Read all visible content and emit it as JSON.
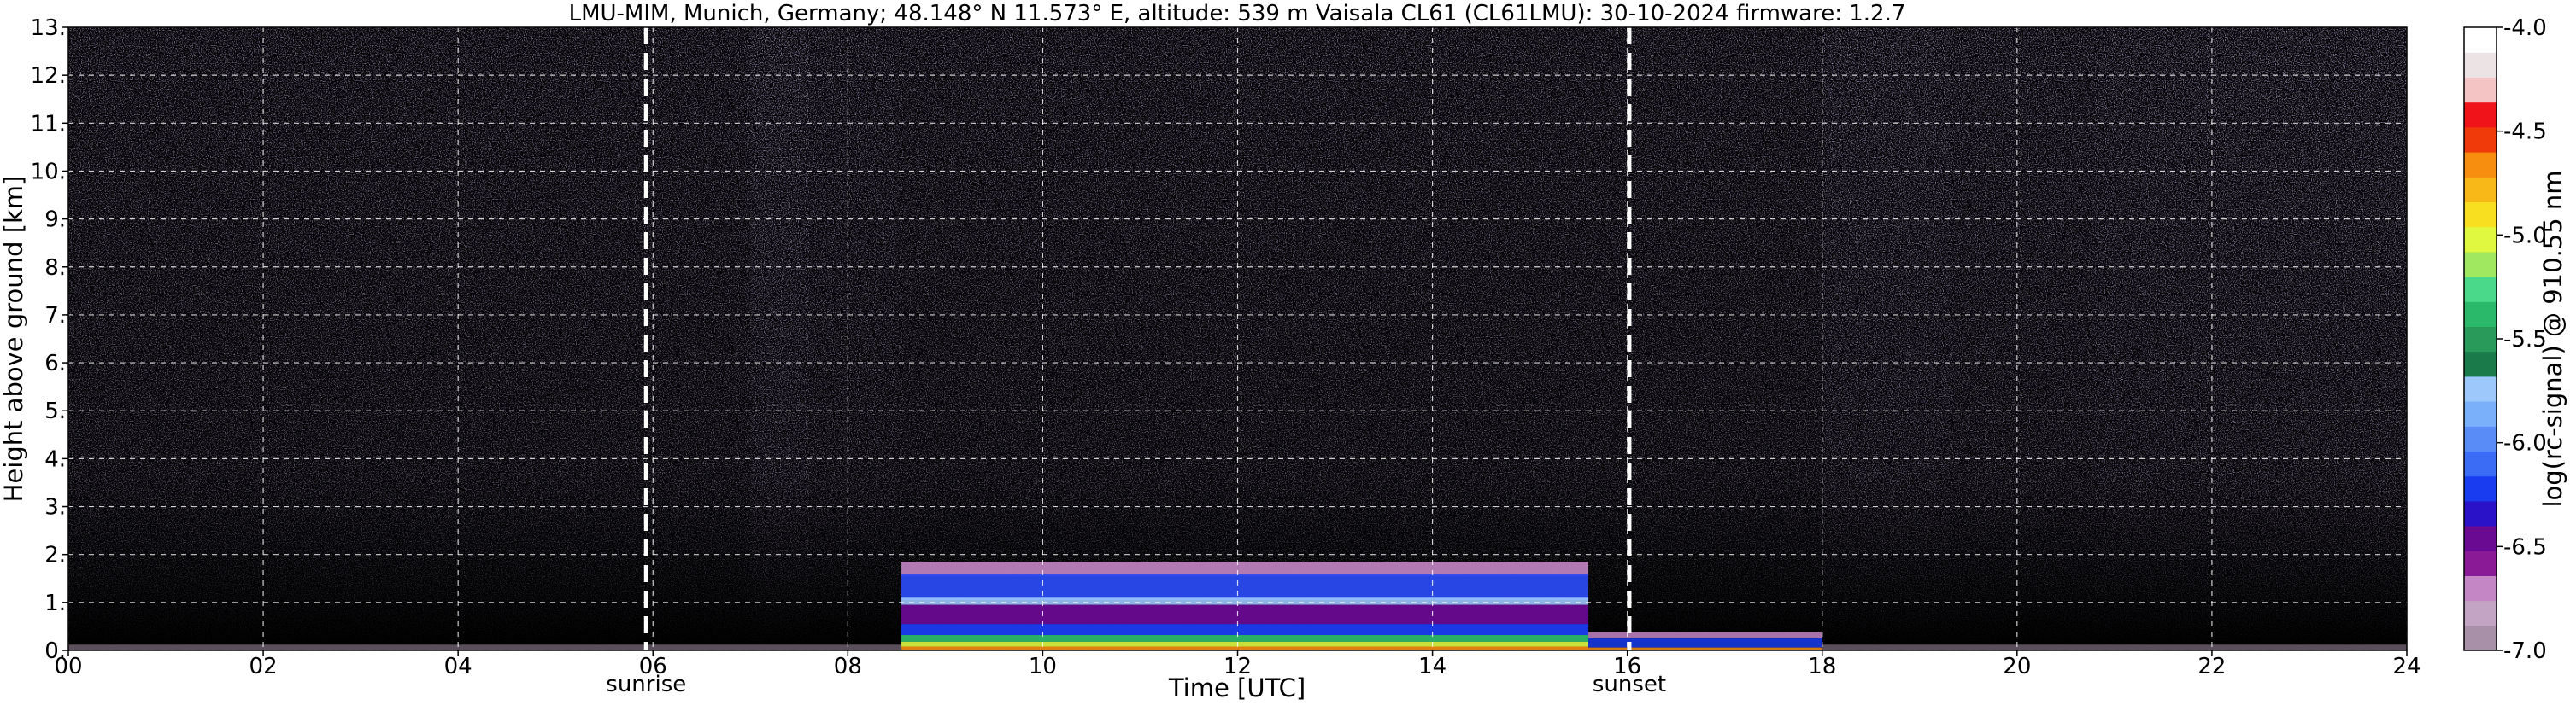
{
  "chart_data": {
    "type": "heatmap",
    "title": "LMU-MIM, Munich, Germany; 48.148° N 11.573° E, altitude: 539 m    Vaisala CL61 (CL61LMU): 30-10-2024    firmware: 1.2.7",
    "xlabel": "Time [UTC]",
    "ylabel": "Height above ground [km]",
    "xlim": [
      0,
      24
    ],
    "ylim": [
      0,
      13
    ],
    "x_ticks": [
      "00",
      "02",
      "04",
      "06",
      "08",
      "10",
      "12",
      "14",
      "16",
      "18",
      "20",
      "22",
      "24"
    ],
    "x_tick_values": [
      0,
      2,
      4,
      6,
      8,
      10,
      12,
      14,
      16,
      18,
      20,
      22,
      24
    ],
    "y_ticks": [
      "0.",
      "1.",
      "2.",
      "3.",
      "4.",
      "5.",
      "6.",
      "7.",
      "8.",
      "9.",
      "10.",
      "11.",
      "12.",
      "13."
    ],
    "y_tick_values": [
      0,
      1,
      2,
      3,
      4,
      5,
      6,
      7,
      8,
      9,
      10,
      11,
      12,
      13
    ],
    "grid": true,
    "markers": [
      {
        "label": "sunrise",
        "x": 5.93
      },
      {
        "label": "sunset",
        "x": 16.02
      }
    ],
    "colorbar": {
      "label": "log(rc-signal) @ 910.55 nm",
      "range": [
        -7.0,
        -4.0
      ],
      "ticks": [
        "-4.0",
        "-4.5",
        "-5.0",
        "-5.5",
        "-6.0",
        "-6.5",
        "-7.0"
      ],
      "tick_values": [
        -4.0,
        -4.5,
        -5.0,
        -5.5,
        -6.0,
        -6.5,
        -7.0
      ],
      "colors": [
        "#a890a8",
        "#c4a4c4",
        "#c486c4",
        "#8a1a96",
        "#6a0a92",
        "#2a12c8",
        "#1a3cf0",
        "#3a6cf6",
        "#5a8cf8",
        "#7ab0fa",
        "#9cc8fb",
        "#1a7a4a",
        "#2a9a5a",
        "#2ab86a",
        "#4ad88a",
        "#a0e860",
        "#e0f840",
        "#f8e020",
        "#f8b818",
        "#f88e10",
        "#f03a0a",
        "#f0141a",
        "#f4c4c4",
        "#ece4e4",
        "#ffffff"
      ]
    },
    "features": [
      {
        "name": "aerosol layer",
        "x_range": [
          8.5,
          15.6
        ],
        "height_range": [
          0.1,
          1.8
        ]
      },
      {
        "name": "evening residual layer",
        "x_range": [
          15.6,
          18.0
        ],
        "height_range": [
          0.05,
          0.35
        ]
      }
    ]
  }
}
